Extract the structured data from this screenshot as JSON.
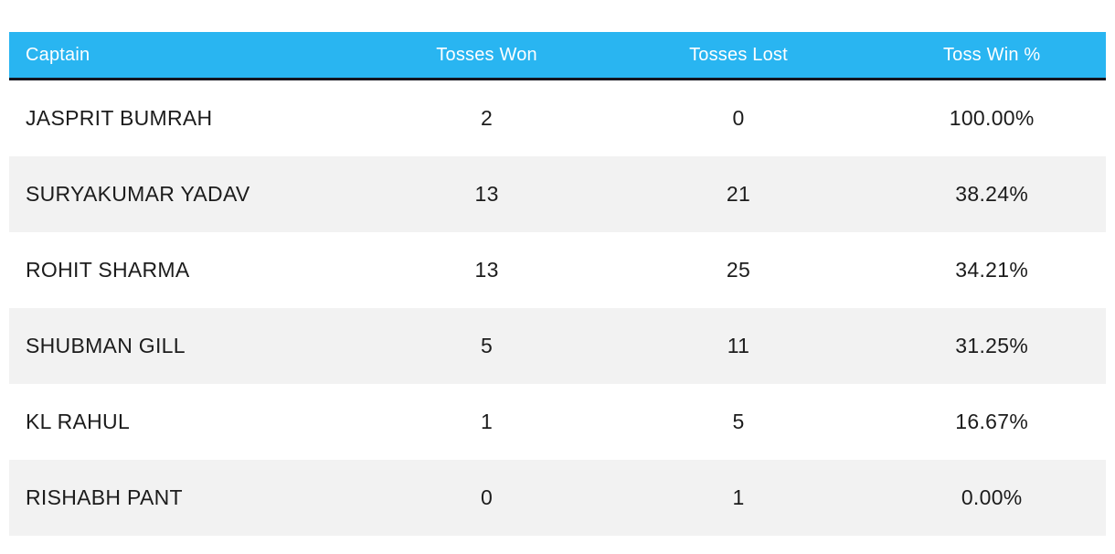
{
  "accent_color": "#29b5f1",
  "header_divider_color": "#14141e",
  "zebra_row_color": "#f2f2f2",
  "table": {
    "columns": [
      {
        "label": "Captain",
        "align": "left"
      },
      {
        "label": "Tosses Won",
        "align": "center"
      },
      {
        "label": "Tosses Lost",
        "align": "center"
      },
      {
        "label": "Toss Win %",
        "align": "center"
      }
    ],
    "rows": [
      {
        "captain": "JASPRIT BUMRAH",
        "tosses_won": "2",
        "tosses_lost": "0",
        "toss_win_pct": "100.00%"
      },
      {
        "captain": "SURYAKUMAR YADAV",
        "tosses_won": "13",
        "tosses_lost": "21",
        "toss_win_pct": "38.24%"
      },
      {
        "captain": "ROHIT SHARMA",
        "tosses_won": "13",
        "tosses_lost": "25",
        "toss_win_pct": "34.21%"
      },
      {
        "captain": "SHUBMAN GILL",
        "tosses_won": "5",
        "tosses_lost": "11",
        "toss_win_pct": "31.25%"
      },
      {
        "captain": "KL RAHUL",
        "tosses_won": "1",
        "tosses_lost": "5",
        "toss_win_pct": "16.67%"
      },
      {
        "captain": "RISHABH PANT",
        "tosses_won": "0",
        "tosses_lost": "1",
        "toss_win_pct": "0.00%"
      }
    ]
  },
  "chart_data": {
    "type": "table",
    "title": "",
    "columns": [
      "Captain",
      "Tosses Won",
      "Tosses Lost",
      "Toss Win %"
    ],
    "rows": [
      [
        "JASPRIT BUMRAH",
        2,
        0,
        "100.00%"
      ],
      [
        "SURYAKUMAR YADAV",
        13,
        21,
        "38.24%"
      ],
      [
        "ROHIT SHARMA",
        13,
        25,
        "34.21%"
      ],
      [
        "SHUBMAN GILL",
        5,
        11,
        "31.25%"
      ],
      [
        "KL RAHUL",
        1,
        5,
        "16.67%"
      ],
      [
        "RISHABH PANT",
        0,
        1,
        "0.00%"
      ]
    ]
  }
}
